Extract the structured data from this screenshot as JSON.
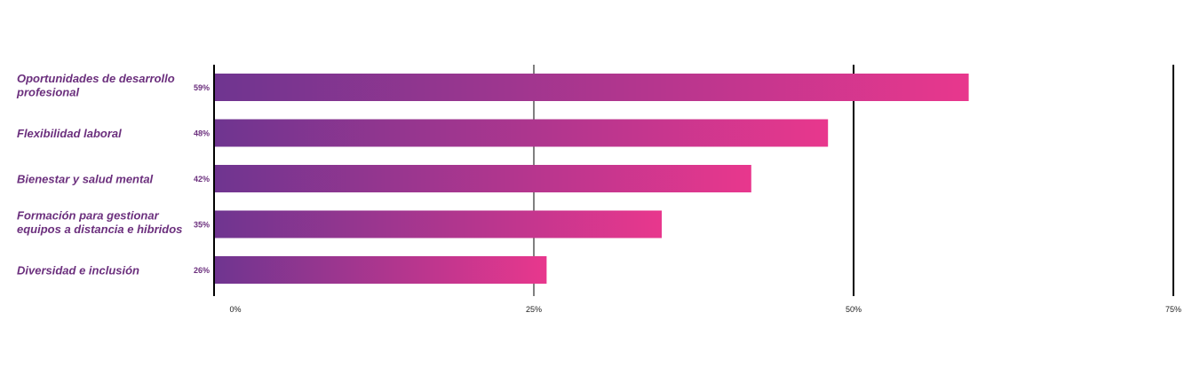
{
  "chart_data": {
    "type": "bar",
    "orientation": "horizontal",
    "categories": [
      [
        "Oportunidades de desarrollo",
        "profesional"
      ],
      [
        "Flexibilidad laboral"
      ],
      [
        "Bienestar y salud mental"
      ],
      [
        "Formación para gestionar",
        "equipos a distancia e hibridos"
      ],
      [
        "Diversidad e inclusión"
      ]
    ],
    "values": [
      59,
      48,
      42,
      35,
      26
    ],
    "value_labels": [
      "59%",
      "48%",
      "42%",
      "35%",
      "26%"
    ],
    "xticks": [
      {
        "value": 0,
        "label": "0%"
      },
      {
        "value": 25,
        "label": "25%"
      },
      {
        "value": 50,
        "label": "50%"
      },
      {
        "value": 75,
        "label": "75%"
      }
    ],
    "xlim": [
      0,
      75
    ],
    "title": "",
    "xlabel": "",
    "ylabel": "",
    "grid": true,
    "legend": "none",
    "colors": {
      "bar_gradient_start": "#6f3590",
      "bar_gradient_end": "#e8378d",
      "label_text": "#6b2f7d",
      "axis": "#000000"
    }
  }
}
